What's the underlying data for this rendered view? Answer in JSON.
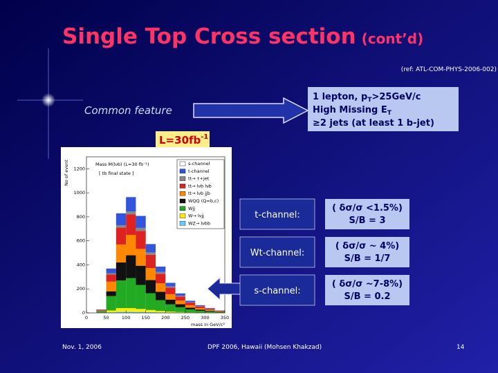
{
  "header": {
    "title": "Single Top Cross section",
    "title_suffix": "(cont’d)",
    "reference": "(ref: ATL-COM-PHYS-2006-002)"
  },
  "common_feature": "Common feature",
  "selection": [
    [
      "1 lepton, p",
      "T",
      ">25GeV/c"
    ],
    [
      "High Missing E",
      "T"
    ],
    [
      "≥2 jets (at least 1 b-jet)"
    ]
  ],
  "luminosity": [
    "L=30fb",
    "-1"
  ],
  "chart_data": {
    "type": "histogram",
    "title": "Mass M(lνb) (L=30 fb⁻¹)",
    "subtitle": "[ tb final state ]",
    "xlabel": "mass in GeV/c²",
    "ylabel": "No of event",
    "bins": [
      0,
      25,
      50,
      75,
      100,
      125,
      150,
      175,
      200,
      225,
      250,
      275,
      300,
      325,
      350
    ],
    "xlim": [
      0,
      350
    ],
    "xticks": [
      0,
      50,
      100,
      150,
      200,
      250,
      300,
      350
    ],
    "ylim": [
      0,
      1300
    ],
    "yticks": [
      0,
      200,
      400,
      600,
      800,
      1000,
      1200
    ],
    "series": [
      {
        "name": "s-channel",
        "color": "#ffffff",
        "values": [
          0,
          1,
          10,
          25,
          35,
          30,
          20,
          12,
          8,
          5,
          3,
          2,
          1,
          1
        ]
      },
      {
        "name": "t-channel",
        "color": "#3355dd",
        "values": [
          0,
          3,
          40,
          100,
          120,
          100,
          70,
          45,
          30,
          20,
          12,
          8,
          5,
          3
        ]
      },
      {
        "name": "tt→ τ+jet",
        "color": "#888888",
        "values": [
          0,
          1,
          10,
          20,
          25,
          25,
          20,
          15,
          10,
          6,
          4,
          3,
          2,
          1
        ]
      },
      {
        "name": "tt→ lνb lνb",
        "color": "#dd2222",
        "values": [
          0,
          5,
          60,
          140,
          170,
          150,
          110,
          80,
          55,
          35,
          22,
          14,
          8,
          4
        ]
      },
      {
        "name": "tt→ lνb jjb",
        "color": "#ff8800",
        "values": [
          0,
          5,
          80,
          150,
          170,
          140,
          100,
          70,
          45,
          30,
          20,
          12,
          8,
          4
        ]
      },
      {
        "name": "WQQ (Q=b,c)",
        "color": "#111111",
        "values": [
          0,
          2,
          40,
          150,
          190,
          160,
          110,
          70,
          40,
          25,
          15,
          10,
          6,
          3
        ]
      },
      {
        "name": "Wjj",
        "color": "#22aa22",
        "values": [
          0,
          10,
          120,
          230,
          250,
          200,
          140,
          90,
          60,
          40,
          25,
          15,
          10,
          5
        ]
      },
      {
        "name": "W→ lνjj",
        "color": "#ffee00",
        "values": [
          0,
          2,
          15,
          30,
          30,
          25,
          18,
          12,
          8,
          5,
          3,
          2,
          1,
          1
        ]
      },
      {
        "name": "WZ→ lνbb",
        "color": "#66ccff",
        "values": [
          0,
          1,
          5,
          10,
          10,
          8,
          6,
          4,
          3,
          2,
          1,
          1,
          1,
          0
        ]
      }
    ]
  },
  "channels": [
    {
      "name": "t-channel:",
      "precision": "( δσ/σ <1.5%)",
      "ratio": "S/B = 3"
    },
    {
      "name": "Wt-channel:",
      "precision": "( δσ/σ ~ 4%)",
      "ratio": "S/B = 1/7"
    },
    {
      "name": "s-channel:",
      "precision": "( δσ/σ ~7-8%)",
      "ratio": "S/B = 0.2"
    }
  ],
  "footer": {
    "date": "Nov. 1, 2006",
    "event": "DPF 2006, Hawaii (Mohsen Khakzad)",
    "page": "14"
  }
}
